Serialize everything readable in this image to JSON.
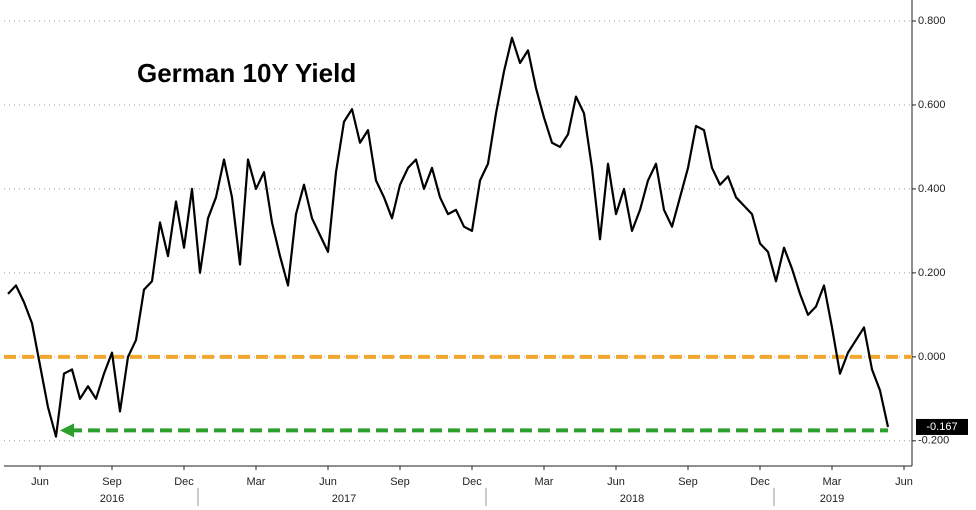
{
  "chart_data": {
    "type": "line",
    "title": "German 10Y Yield",
    "categories": [
      null,
      null,
      null,
      null,
      "Jun",
      null,
      null,
      null,
      null,
      null,
      null,
      null,
      null,
      "Sep",
      null,
      null,
      null,
      null,
      null,
      null,
      null,
      null,
      "Dec",
      null,
      null,
      null,
      null,
      null,
      null,
      null,
      null,
      "Mar",
      null,
      null,
      null,
      null,
      null,
      null,
      null,
      null,
      "Jun",
      null,
      null,
      null,
      null,
      null,
      null,
      null,
      null,
      "Sep",
      null,
      null,
      null,
      null,
      null,
      null,
      null,
      null,
      "Dec",
      null,
      null,
      null,
      null,
      null,
      null,
      null,
      null,
      "Mar",
      null,
      null,
      null,
      null,
      null,
      null,
      null,
      null,
      "Jun",
      null,
      null,
      null,
      null,
      null,
      null,
      null,
      null,
      "Sep",
      null,
      null,
      null,
      null,
      null,
      null,
      null,
      null,
      "Dec",
      null,
      null,
      null,
      null,
      null,
      null,
      null,
      null,
      "Mar",
      null,
      null,
      null,
      null,
      null,
      null,
      null,
      null,
      "Jun",
      null
    ],
    "years": [
      null,
      null,
      null,
      null,
      null,
      null,
      null,
      null,
      null,
      null,
      null,
      null,
      null,
      "2016",
      null,
      null,
      null,
      null,
      null,
      null,
      null,
      null,
      null,
      null,
      null,
      null,
      null,
      null,
      null,
      null,
      null,
      null,
      null,
      null,
      null,
      null,
      null,
      null,
      null,
      null,
      null,
      null,
      "2017",
      null,
      null,
      null,
      null,
      null,
      null,
      null,
      null,
      null,
      null,
      null,
      null,
      null,
      null,
      null,
      null,
      null,
      null,
      null,
      null,
      null,
      null,
      null,
      null,
      null,
      null,
      null,
      null,
      null,
      null,
      null,
      null,
      null,
      null,
      null,
      "2018",
      null,
      null,
      null,
      null,
      null,
      null,
      null,
      null,
      null,
      null,
      null,
      null,
      null,
      null,
      null,
      null,
      null,
      null,
      null,
      null,
      null,
      null,
      null,
      null,
      "2019",
      null,
      null,
      null,
      null,
      null,
      null,
      null,
      null,
      null,
      null
    ],
    "values": [
      0.15,
      0.17,
      0.13,
      0.08,
      -0.02,
      -0.12,
      -0.19,
      -0.04,
      -0.03,
      -0.1,
      -0.07,
      -0.1,
      -0.04,
      0.01,
      -0.13,
      0.0,
      0.04,
      0.16,
      0.18,
      0.32,
      0.24,
      0.37,
      0.26,
      0.4,
      0.2,
      0.33,
      0.38,
      0.47,
      0.38,
      0.22,
      0.47,
      0.4,
      0.44,
      0.32,
      0.24,
      0.17,
      0.34,
      0.41,
      0.33,
      0.29,
      0.25,
      0.44,
      0.56,
      0.59,
      0.51,
      0.54,
      0.42,
      0.38,
      0.33,
      0.41,
      0.45,
      0.47,
      0.4,
      0.45,
      0.38,
      0.34,
      0.35,
      0.31,
      0.3,
      0.42,
      0.46,
      0.58,
      0.68,
      0.76,
      0.7,
      0.73,
      0.64,
      0.57,
      0.51,
      0.5,
      0.53,
      0.62,
      0.58,
      0.45,
      0.28,
      0.46,
      0.34,
      0.4,
      0.3,
      0.35,
      0.42,
      0.46,
      0.35,
      0.31,
      0.38,
      0.45,
      0.55,
      0.54,
      0.45,
      0.41,
      0.43,
      0.38,
      0.36,
      0.34,
      0.27,
      0.25,
      0.18,
      0.26,
      0.21,
      0.15,
      0.1,
      0.12,
      0.17,
      0.07,
      -0.04,
      0.01,
      0.04,
      0.07,
      -0.03,
      -0.08,
      -0.167,
      null,
      null,
      null
    ],
    "color": "#000000",
    "ylim": [
      -0.26,
      0.85
    ],
    "yticks": [
      {
        "value": -0.2,
        "label": "-0.200"
      },
      {
        "value": 0,
        "label": "0.000"
      },
      {
        "value": 0.2,
        "label": "0.200"
      },
      {
        "value": 0.4,
        "label": "0.400"
      },
      {
        "value": 0.6,
        "label": "0.600"
      },
      {
        "value": 0.8,
        "label": "0.800"
      }
    ],
    "grid": true,
    "reference_lines": [
      {
        "value": 0,
        "color": "#f0a830"
      },
      {
        "value": -0.175,
        "color": "#2ca02c",
        "arrow": true
      }
    ]
  }
}
